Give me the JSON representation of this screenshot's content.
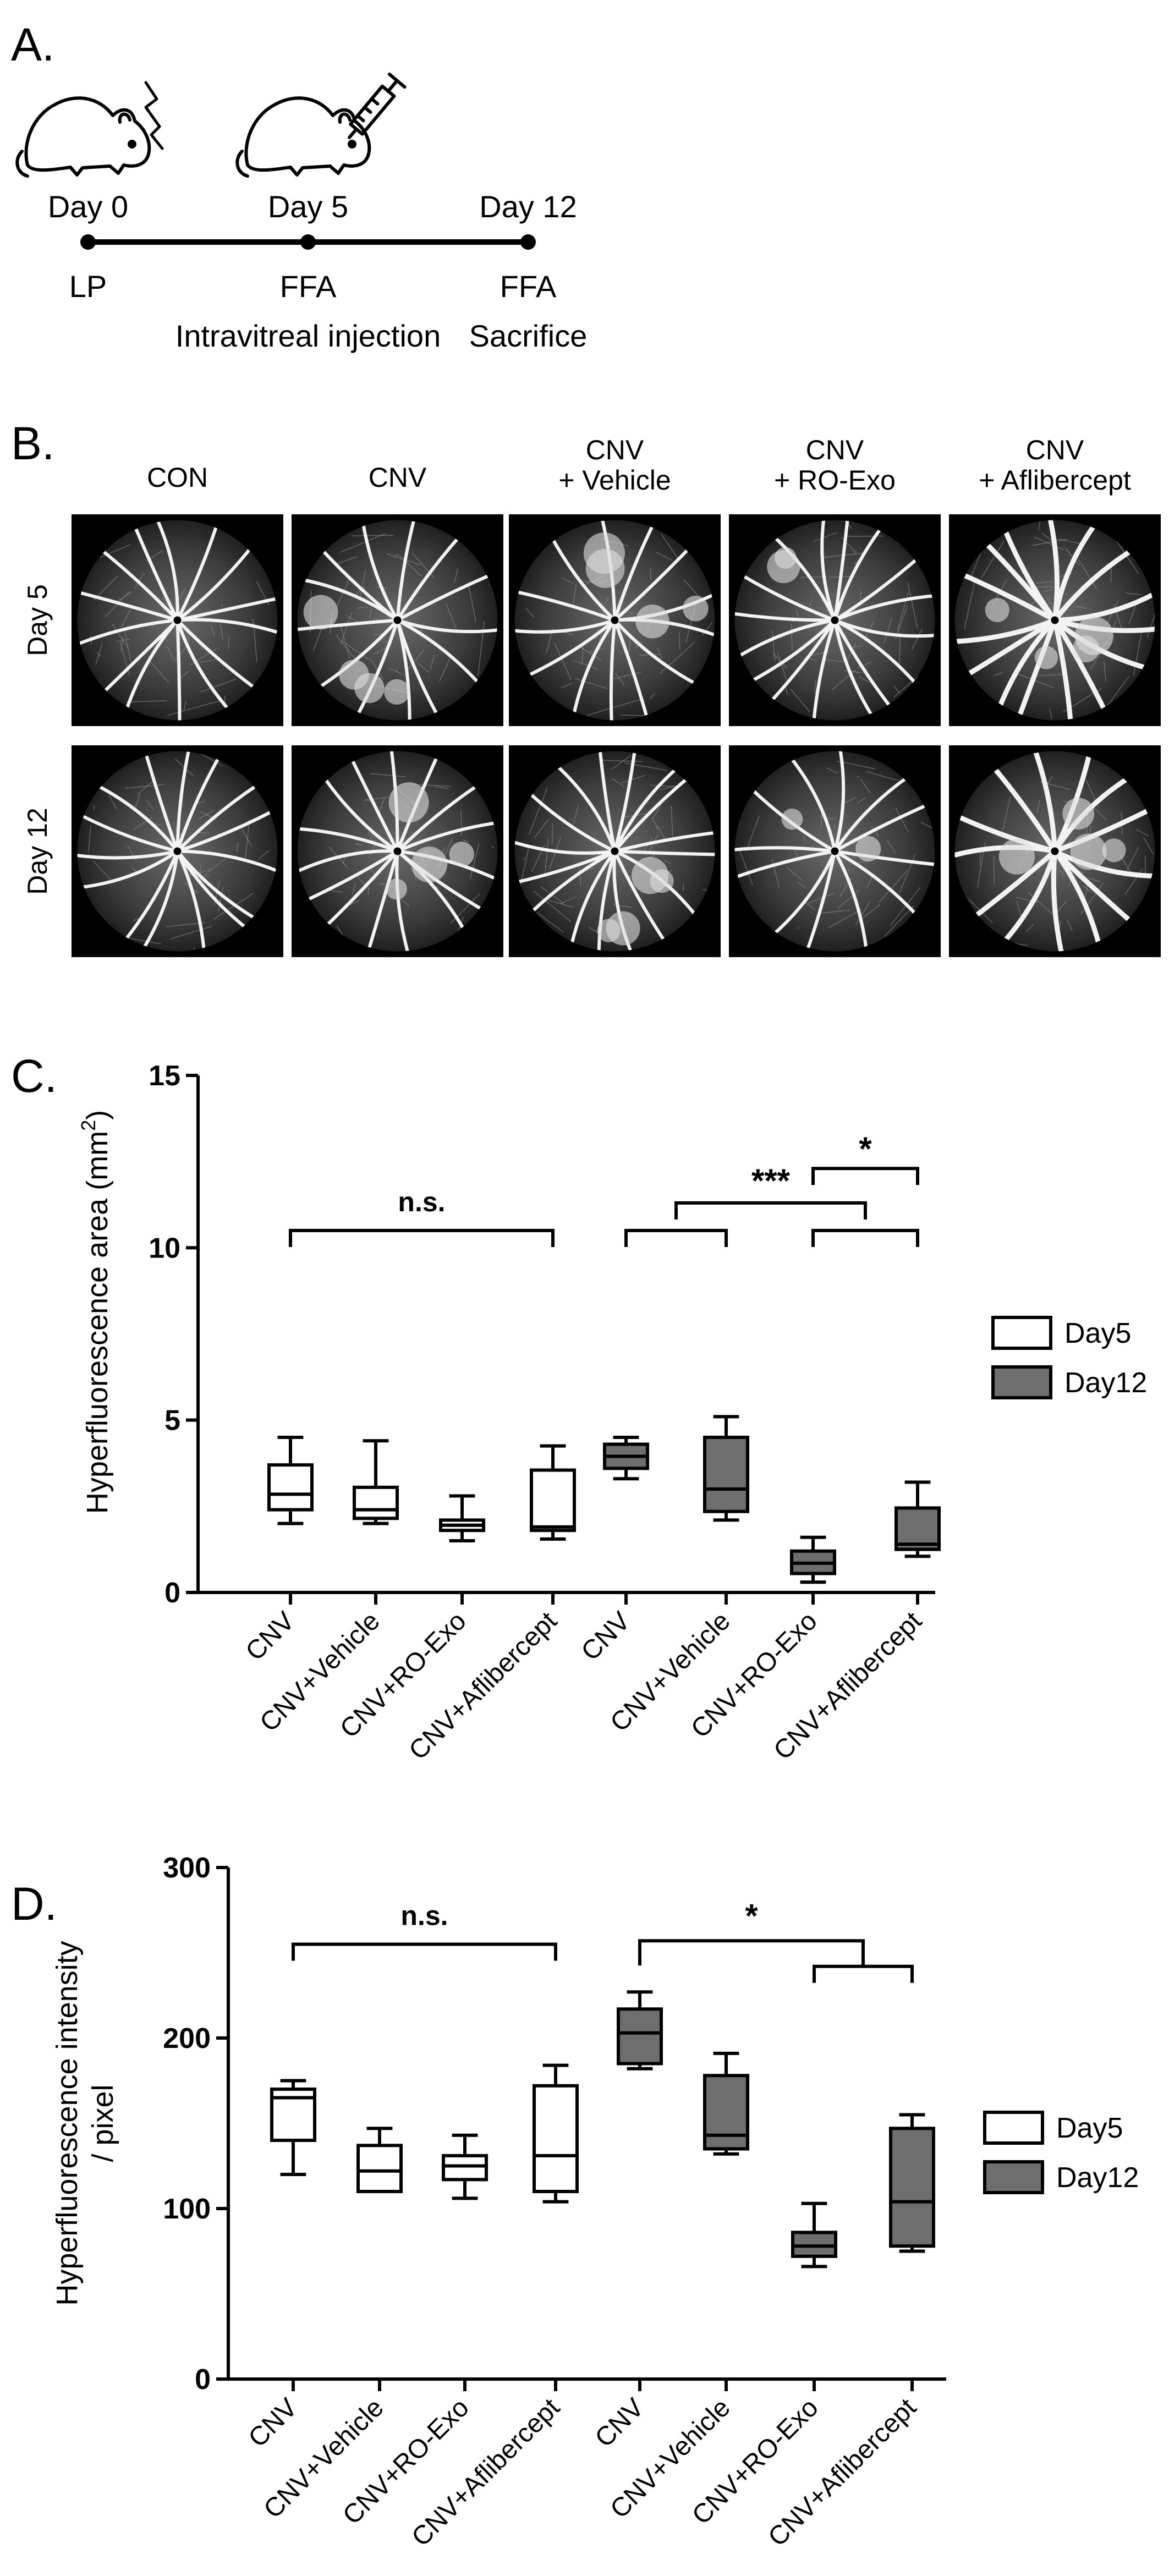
{
  "panelA": {
    "letter": "A.",
    "timeline": [
      {
        "day": "Day 0",
        "event": "LP",
        "event2": ""
      },
      {
        "day": "Day 5",
        "event": "FFA",
        "event2": "Intravitreal injection"
      },
      {
        "day": "Day 12",
        "event": "FFA",
        "event2": "Sacrifice"
      }
    ],
    "icons": [
      "mouse-laser-icon",
      "mouse-syringe-icon"
    ]
  },
  "panelB": {
    "letter": "B.",
    "columns": [
      "CON",
      "CNV",
      "CNV\n+ Vehicle",
      "CNV\n+ RO-Exo",
      "CNV\n+ Aflibercept"
    ],
    "rows": [
      "Day 5",
      "Day 12"
    ]
  },
  "panelC": {
    "letter": "C.",
    "chart_data": {
      "type": "box",
      "ylabel": "Hyperfluorescence area (mm²)",
      "ylabel_main": "Hyperfluorescence area (mm",
      "ylabel_sup": "2",
      "ylabel_end": ")",
      "ylim": [
        0,
        15
      ],
      "yticks": [
        "0",
        "5",
        "10",
        "15"
      ],
      "categories": [
        "CNV",
        "CNV+Vehicle",
        "CNV+RO-Exo",
        "CNV+Aflibercept",
        "CNV",
        "CNV+Vehicle",
        "CNV+RO-Exo",
        "CNV+Aflibercept"
      ],
      "legend": [
        "Day5",
        "Day12"
      ],
      "boxes": [
        {
          "group": 0,
          "min": 2.0,
          "q1": 2.4,
          "median": 2.85,
          "q3": 3.7,
          "max": 4.5
        },
        {
          "group": 0,
          "min": 2.0,
          "q1": 2.15,
          "median": 2.4,
          "q3": 3.05,
          "max": 4.4
        },
        {
          "group": 0,
          "min": 1.5,
          "q1": 1.8,
          "median": 1.95,
          "q3": 2.1,
          "max": 2.8
        },
        {
          "group": 0,
          "min": 1.55,
          "q1": 1.8,
          "median": 1.9,
          "q3": 3.55,
          "max": 4.25
        },
        {
          "group": 1,
          "min": 3.3,
          "q1": 3.6,
          "median": 3.95,
          "q3": 4.3,
          "max": 4.5
        },
        {
          "group": 1,
          "min": 2.1,
          "q1": 2.35,
          "median": 3.0,
          "q3": 4.5,
          "max": 5.1
        },
        {
          "group": 1,
          "min": 0.3,
          "q1": 0.55,
          "median": 0.85,
          "q3": 1.2,
          "max": 1.6
        },
        {
          "group": 1,
          "min": 1.05,
          "q1": 1.25,
          "median": 1.4,
          "q3": 2.45,
          "max": 3.2
        }
      ],
      "annotations": [
        "n.s.",
        "***",
        "*"
      ]
    }
  },
  "panelD": {
    "letter": "D.",
    "chart_data": {
      "type": "box",
      "ylabel_line1": "Hyperfluorescence intensity",
      "ylabel_line2": "/ pixel",
      "ylim": [
        0,
        300
      ],
      "yticks": [
        "0",
        "100",
        "200",
        "300"
      ],
      "categories": [
        "CNV",
        "CNV+Vehicle",
        "CNV+RO-Exo",
        "CNV+Aflibercept",
        "CNV",
        "CNV+Vehicle",
        "CNV+RO-Exo",
        "CNV+Aflibercept"
      ],
      "legend": [
        "Day5",
        "Day12"
      ],
      "boxes": [
        {
          "group": 0,
          "min": 120,
          "q1": 140,
          "median": 165,
          "q3": 170,
          "max": 175
        },
        {
          "group": 0,
          "min": 110,
          "q1": 110,
          "median": 122,
          "q3": 137,
          "max": 147
        },
        {
          "group": 0,
          "min": 106,
          "q1": 117,
          "median": 125,
          "q3": 131,
          "max": 143
        },
        {
          "group": 0,
          "min": 104,
          "q1": 110,
          "median": 131,
          "q3": 172,
          "max": 184
        },
        {
          "group": 1,
          "min": 182,
          "q1": 185,
          "median": 203,
          "q3": 217,
          "max": 227
        },
        {
          "group": 1,
          "min": 132,
          "q1": 135,
          "median": 143,
          "q3": 178,
          "max": 191
        },
        {
          "group": 1,
          "min": 66,
          "q1": 72,
          "median": 78,
          "q3": 86,
          "max": 103
        },
        {
          "group": 1,
          "min": 75,
          "q1": 78,
          "median": 104,
          "q3": 147,
          "max": 155
        }
      ],
      "annotations": [
        "n.s.",
        "*"
      ]
    }
  }
}
